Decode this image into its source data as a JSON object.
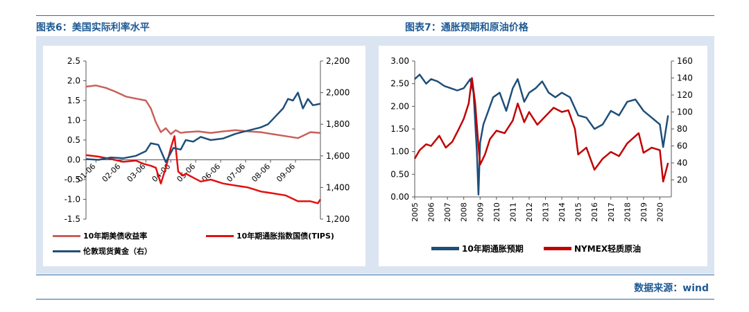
{
  "header": {
    "left_title": "图表6：美国实际利率水平",
    "right_title": "图表7：通胀预期和原油价格"
  },
  "footer": {
    "source": "数据来源：wind"
  },
  "colors": {
    "accent_blue": "#1f5a94",
    "panel_bg": "#dbe5f1",
    "series_salmon": "#c8605b",
    "series_red": "#e11010",
    "series_navy": "#1f4e79",
    "series_darkred": "#c00000"
  },
  "chart_data": [
    {
      "type": "line",
      "title": "图表6：美国实际利率水平",
      "x_ticks": [
        "01-06",
        "02-06",
        "03-06",
        "04-06",
        "05-06",
        "06-06",
        "07-06",
        "08-06",
        "09-06"
      ],
      "y_left": {
        "range": [
          -1.5,
          2.5
        ],
        "ticks": [
          "-1.5",
          "-1.0",
          "-0.5",
          "0.0",
          "0.5",
          "1.0",
          "1.5",
          "2.0",
          "2.5"
        ]
      },
      "y_right": {
        "range": [
          1200,
          2200
        ],
        "ticks": [
          "1,200",
          "1,400",
          "1,600",
          "1,800",
          "2,000",
          "2,200"
        ]
      },
      "grid": false,
      "legend_position": "bottom",
      "series": [
        {
          "name": "10年期美债收益率",
          "axis": "left",
          "color": "#c8605b",
          "x": [
            0,
            0.4,
            0.8,
            1.2,
            1.6,
            2.0,
            2.4,
            2.6,
            2.8,
            3.0,
            3.2,
            3.4,
            3.6,
            3.8,
            4.0,
            4.5,
            5.0,
            5.5,
            6.0,
            6.5,
            7.0,
            7.5,
            8.0,
            8.5,
            9.0,
            9.4
          ],
          "values": [
            1.85,
            1.88,
            1.82,
            1.72,
            1.6,
            1.55,
            1.5,
            1.3,
            0.95,
            0.7,
            0.8,
            0.65,
            0.75,
            0.68,
            0.7,
            0.72,
            0.68,
            0.72,
            0.75,
            0.72,
            0.7,
            0.65,
            0.6,
            0.55,
            0.7,
            0.68
          ]
        },
        {
          "name": "10年期通胀指数国债(TIPS)",
          "axis": "left",
          "color": "#e11010",
          "x": [
            0,
            0.5,
            1.0,
            1.5,
            2.0,
            2.3,
            2.6,
            2.8,
            3.0,
            3.2,
            3.4,
            3.55,
            3.7,
            3.9,
            4.0,
            4.3,
            4.6,
            5.0,
            5.5,
            6.0,
            6.5,
            7.0,
            7.5,
            8.0,
            8.5,
            9.0,
            9.3,
            9.4
          ],
          "values": [
            0.12,
            0.08,
            0.02,
            -0.05,
            -0.02,
            -0.1,
            -0.15,
            -0.2,
            -0.6,
            -0.2,
            0.3,
            0.6,
            -0.3,
            -0.4,
            -0.35,
            -0.45,
            -0.55,
            -0.5,
            -0.6,
            -0.65,
            -0.7,
            -0.8,
            -0.85,
            -0.9,
            -1.05,
            -1.05,
            -1.1,
            -1.0
          ]
        },
        {
          "name": "伦敦现货黄金（右）",
          "axis": "right",
          "color": "#1f4e79",
          "x": [
            0,
            0.5,
            1.0,
            1.5,
            2.0,
            2.4,
            2.6,
            2.9,
            3.2,
            3.5,
            3.8,
            4.0,
            4.3,
            4.6,
            5.0,
            5.5,
            6.0,
            6.5,
            7.0,
            7.3,
            7.6,
            7.9,
            8.1,
            8.3,
            8.5,
            8.7,
            8.9,
            9.1,
            9.4
          ],
          "values": [
            1580,
            1575,
            1590,
            1585,
            1600,
            1630,
            1680,
            1670,
            1560,
            1650,
            1640,
            1700,
            1690,
            1720,
            1700,
            1710,
            1740,
            1760,
            1780,
            1800,
            1850,
            1900,
            1960,
            1950,
            2000,
            1900,
            1960,
            1920,
            1930
          ]
        }
      ]
    },
    {
      "type": "line",
      "title": "图表7：通胀预期和原油价格",
      "x_ticks": [
        "2005",
        "2006",
        "2007",
        "2008",
        "2009",
        "2010",
        "2011",
        "2012",
        "2013",
        "2014",
        "2015",
        "2016",
        "2017",
        "2018",
        "2019",
        "2020"
      ],
      "y_left": {
        "range": [
          0,
          3
        ],
        "ticks": [
          "0.00",
          "0.50",
          "1.00",
          "1.50",
          "2.00",
          "2.50",
          "3.00"
        ]
      },
      "y_right": {
        "range": [
          0,
          160
        ],
        "ticks": [
          "20",
          "40",
          "60",
          "80",
          "100",
          "120",
          "140",
          "160"
        ]
      },
      "grid": false,
      "legend_position": "bottom",
      "series": [
        {
          "name": "10年期通胀预期",
          "axis": "left",
          "color": "#1f4e79",
          "x": [
            2005.0,
            2005.3,
            2005.7,
            2006.0,
            2006.4,
            2006.8,
            2007.2,
            2007.6,
            2008.0,
            2008.4,
            2008.6,
            2008.8,
            2008.9,
            2009.0,
            2009.2,
            2009.5,
            2009.8,
            2010.2,
            2010.6,
            2011.0,
            2011.3,
            2011.7,
            2012.0,
            2012.4,
            2012.8,
            2013.2,
            2013.6,
            2014.0,
            2014.5,
            2015.0,
            2015.5,
            2016.0,
            2016.5,
            2017.0,
            2017.5,
            2018.0,
            2018.5,
            2019.0,
            2019.5,
            2020.0,
            2020.2,
            2020.5
          ],
          "values": [
            2.6,
            2.7,
            2.5,
            2.6,
            2.55,
            2.45,
            2.4,
            2.35,
            2.4,
            2.6,
            2.3,
            1.0,
            0.05,
            1.2,
            1.6,
            1.9,
            2.2,
            2.3,
            1.9,
            2.4,
            2.6,
            2.1,
            2.3,
            2.4,
            2.55,
            2.3,
            2.2,
            2.3,
            2.2,
            1.8,
            1.75,
            1.5,
            1.6,
            1.9,
            1.8,
            2.1,
            2.15,
            1.9,
            1.75,
            1.6,
            1.1,
            1.8
          ]
        },
        {
          "name": "NYMEX轻质原油",
          "axis": "right",
          "color": "#c00000",
          "x": [
            2005.0,
            2005.3,
            2005.7,
            2006.0,
            2006.5,
            2006.9,
            2007.3,
            2007.7,
            2008.0,
            2008.3,
            2008.5,
            2008.7,
            2008.9,
            2009.0,
            2009.3,
            2009.6,
            2010.0,
            2010.5,
            2011.0,
            2011.3,
            2011.7,
            2012.0,
            2012.5,
            2013.0,
            2013.5,
            2014.0,
            2014.4,
            2014.8,
            2015.0,
            2015.5,
            2016.0,
            2016.5,
            2017.0,
            2017.5,
            2018.0,
            2018.7,
            2019.0,
            2019.5,
            2020.0,
            2020.2,
            2020.5
          ],
          "values": [
            45,
            55,
            62,
            60,
            72,
            58,
            65,
            80,
            92,
            110,
            140,
            110,
            60,
            38,
            50,
            68,
            78,
            75,
            90,
            110,
            88,
            100,
            85,
            95,
            105,
            100,
            102,
            80,
            50,
            58,
            32,
            45,
            53,
            48,
            63,
            75,
            52,
            58,
            55,
            18,
            40
          ]
        }
      ]
    }
  ]
}
